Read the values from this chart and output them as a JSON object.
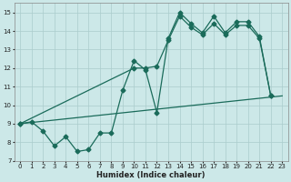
{
  "xlabel": "Humidex (Indice chaleur)",
  "xlim": [
    -0.5,
    23.5
  ],
  "ylim": [
    7,
    15.5
  ],
  "yticks": [
    7,
    8,
    9,
    10,
    11,
    12,
    13,
    14,
    15
  ],
  "xticks": [
    0,
    1,
    2,
    3,
    4,
    5,
    6,
    7,
    8,
    9,
    10,
    11,
    12,
    13,
    14,
    15,
    16,
    17,
    18,
    19,
    20,
    21,
    22,
    23
  ],
  "bg_color": "#cce8e8",
  "grid_color": "#aacccc",
  "line_color": "#1a6b5a",
  "line1_x": [
    0,
    1,
    2,
    3,
    4,
    5,
    6,
    7,
    8,
    9,
    10,
    11,
    12,
    13,
    14,
    15,
    16,
    17,
    18,
    19,
    20,
    21,
    22
  ],
  "line1_y": [
    9.0,
    9.1,
    8.6,
    7.8,
    8.3,
    7.5,
    7.6,
    8.5,
    8.5,
    10.8,
    12.4,
    11.9,
    9.6,
    13.6,
    15.0,
    14.4,
    13.9,
    14.8,
    13.9,
    14.5,
    14.5,
    13.7,
    10.5
  ],
  "line2_x": [
    0,
    10,
    11,
    12,
    13,
    14,
    15,
    16,
    17,
    18,
    19,
    20,
    21,
    22
  ],
  "line2_y": [
    9.0,
    12.0,
    12.0,
    12.1,
    13.5,
    14.8,
    14.2,
    13.8,
    14.4,
    13.8,
    14.3,
    14.3,
    13.6,
    10.5
  ],
  "line3_x": [
    0,
    23
  ],
  "line3_y": [
    9.0,
    10.5
  ],
  "markersize": 2.5,
  "linewidth": 0.9
}
